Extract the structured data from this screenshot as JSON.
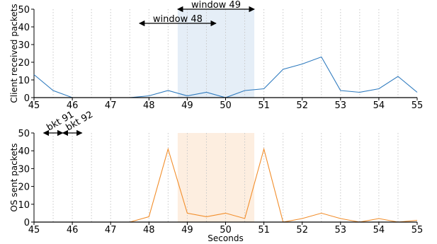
{
  "chart_data": [
    {
      "type": "line",
      "ylabel": "Client received packets",
      "xlim": [
        45,
        55
      ],
      "ylim": [
        0,
        50
      ],
      "xticks": [
        45,
        46,
        47,
        48,
        49,
        50,
        51,
        52,
        53,
        54,
        55
      ],
      "yticks": [
        0,
        10,
        20,
        30,
        40,
        50
      ],
      "xgrid": "dotted vertical lines every 0.5 s",
      "shaded_span": [
        48.75,
        50.75
      ],
      "shade_color": "#e5eef7",
      "series": [
        {
          "color": "#2f7bbf",
          "x": [
            45,
            45.5,
            46,
            46.5,
            47,
            47.5,
            48,
            48.5,
            49,
            49.5,
            50,
            50.5,
            51,
            51.5,
            52,
            52.5,
            53,
            53.5,
            54,
            54.5,
            55
          ],
          "y": [
            13,
            4,
            0,
            0,
            0,
            0,
            1,
            4,
            1,
            3,
            0,
            4,
            5,
            16,
            19,
            23,
            4,
            3,
            5,
            12,
            3
          ]
        }
      ],
      "annotations": [
        {
          "text": "window 48",
          "x_start": 47.75,
          "x_end": 49.75,
          "y": 42
        },
        {
          "text": "window 49",
          "x_start": 48.75,
          "x_end": 50.75,
          "y": 50
        }
      ]
    },
    {
      "type": "line",
      "xlabel": "Seconds",
      "ylabel": "OS sent packets",
      "xlim": [
        45,
        55
      ],
      "ylim": [
        0,
        50
      ],
      "xticks": [
        45,
        46,
        47,
        48,
        49,
        50,
        51,
        52,
        53,
        54,
        55
      ],
      "yticks": [
        0,
        10,
        20,
        30,
        40,
        50
      ],
      "xgrid": "dotted vertical lines every 0.5 s",
      "shaded_span": [
        48.75,
        50.75
      ],
      "shade_color": "#fdeee0",
      "series": [
        {
          "color": "#f28e2b",
          "x": [
            45,
            45.5,
            46,
            46.5,
            47,
            47.5,
            48,
            48.5,
            49,
            49.5,
            50,
            50.5,
            51,
            51.5,
            52,
            52.5,
            53,
            53.5,
            54,
            54.5,
            55
          ],
          "y": [
            0,
            0,
            0,
            0,
            0,
            0,
            3,
            41,
            5,
            3,
            5,
            2,
            41,
            0,
            2,
            5,
            2,
            0,
            2,
            0,
            1
          ]
        }
      ],
      "annotations": [
        {
          "text": "bkt 91",
          "x_start": 45.25,
          "x_end": 45.75,
          "y": 50
        },
        {
          "text": "bkt 92",
          "x_start": 45.75,
          "x_end": 46.25,
          "y": 50
        }
      ]
    }
  ]
}
